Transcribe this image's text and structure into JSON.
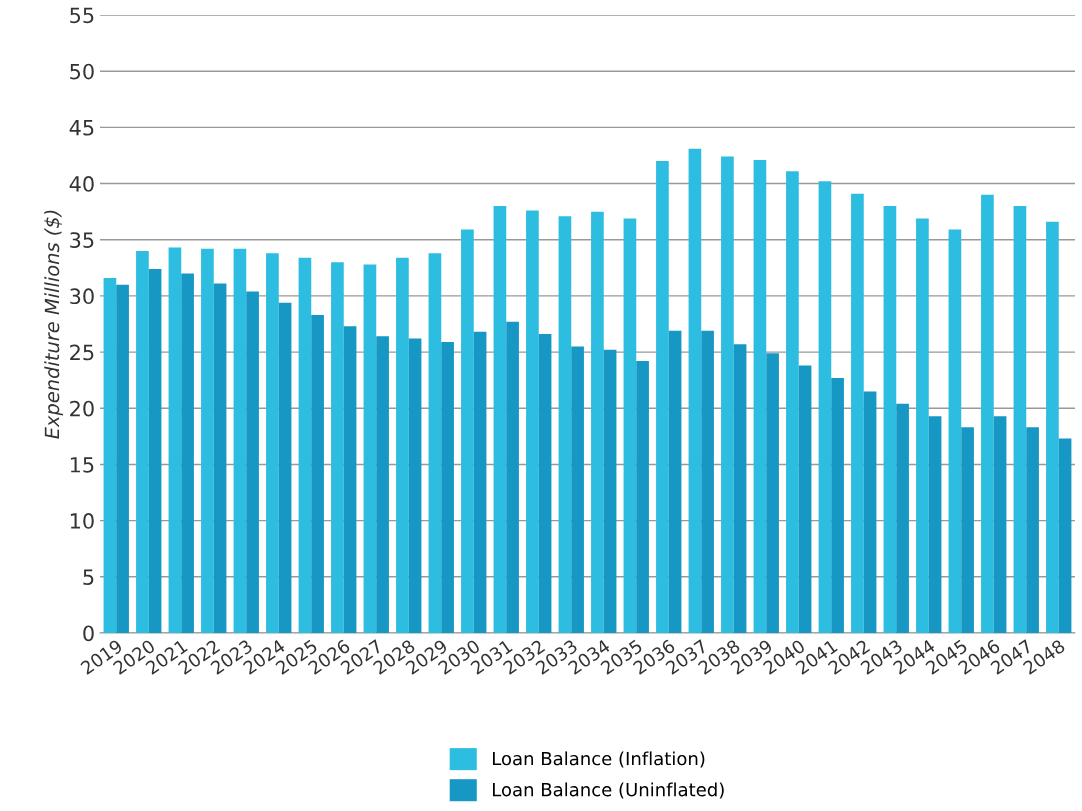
{
  "chart_data": {
    "type": "bar",
    "ylabel": "Expenditure Millions ($)",
    "categories": [
      "2019",
      "2020",
      "2021",
      "2022",
      "2023",
      "2024",
      "2025",
      "2026",
      "2027",
      "2028",
      "2029",
      "2030",
      "2031",
      "2032",
      "2033",
      "2034",
      "2035",
      "2036",
      "2037",
      "2038",
      "2039",
      "2040",
      "2041",
      "2042",
      "2043",
      "2044",
      "2045",
      "2046",
      "2047",
      "2048"
    ],
    "series": [
      {
        "name": "Loan Balance (Inflation)",
        "color": "#2dbde0",
        "values": [
          31.6,
          34.0,
          34.3,
          34.2,
          34.2,
          33.8,
          33.4,
          33.0,
          32.8,
          33.4,
          33.8,
          35.9,
          38.0,
          37.6,
          37.1,
          37.5,
          36.9,
          42.0,
          43.1,
          42.4,
          42.1,
          41.1,
          40.2,
          39.1,
          38.0,
          36.9,
          35.9,
          39.0,
          38.0,
          36.6
        ]
      },
      {
        "name": "Loan Balance (Uninflated)",
        "color": "#1797c3",
        "values": [
          31.0,
          32.4,
          32.0,
          31.1,
          30.4,
          29.4,
          28.3,
          27.3,
          26.4,
          26.2,
          25.9,
          26.8,
          27.7,
          26.6,
          25.5,
          25.2,
          24.2,
          26.9,
          26.9,
          25.7,
          24.9,
          23.8,
          22.7,
          21.5,
          20.4,
          19.3,
          18.3,
          19.3,
          18.3,
          17.3
        ]
      }
    ],
    "ylim": [
      0,
      55
    ],
    "yticks": [
      0,
      5,
      10,
      15,
      20,
      25,
      30,
      35,
      40,
      45,
      50,
      55
    ],
    "grid": "y",
    "legend": "bottom"
  }
}
